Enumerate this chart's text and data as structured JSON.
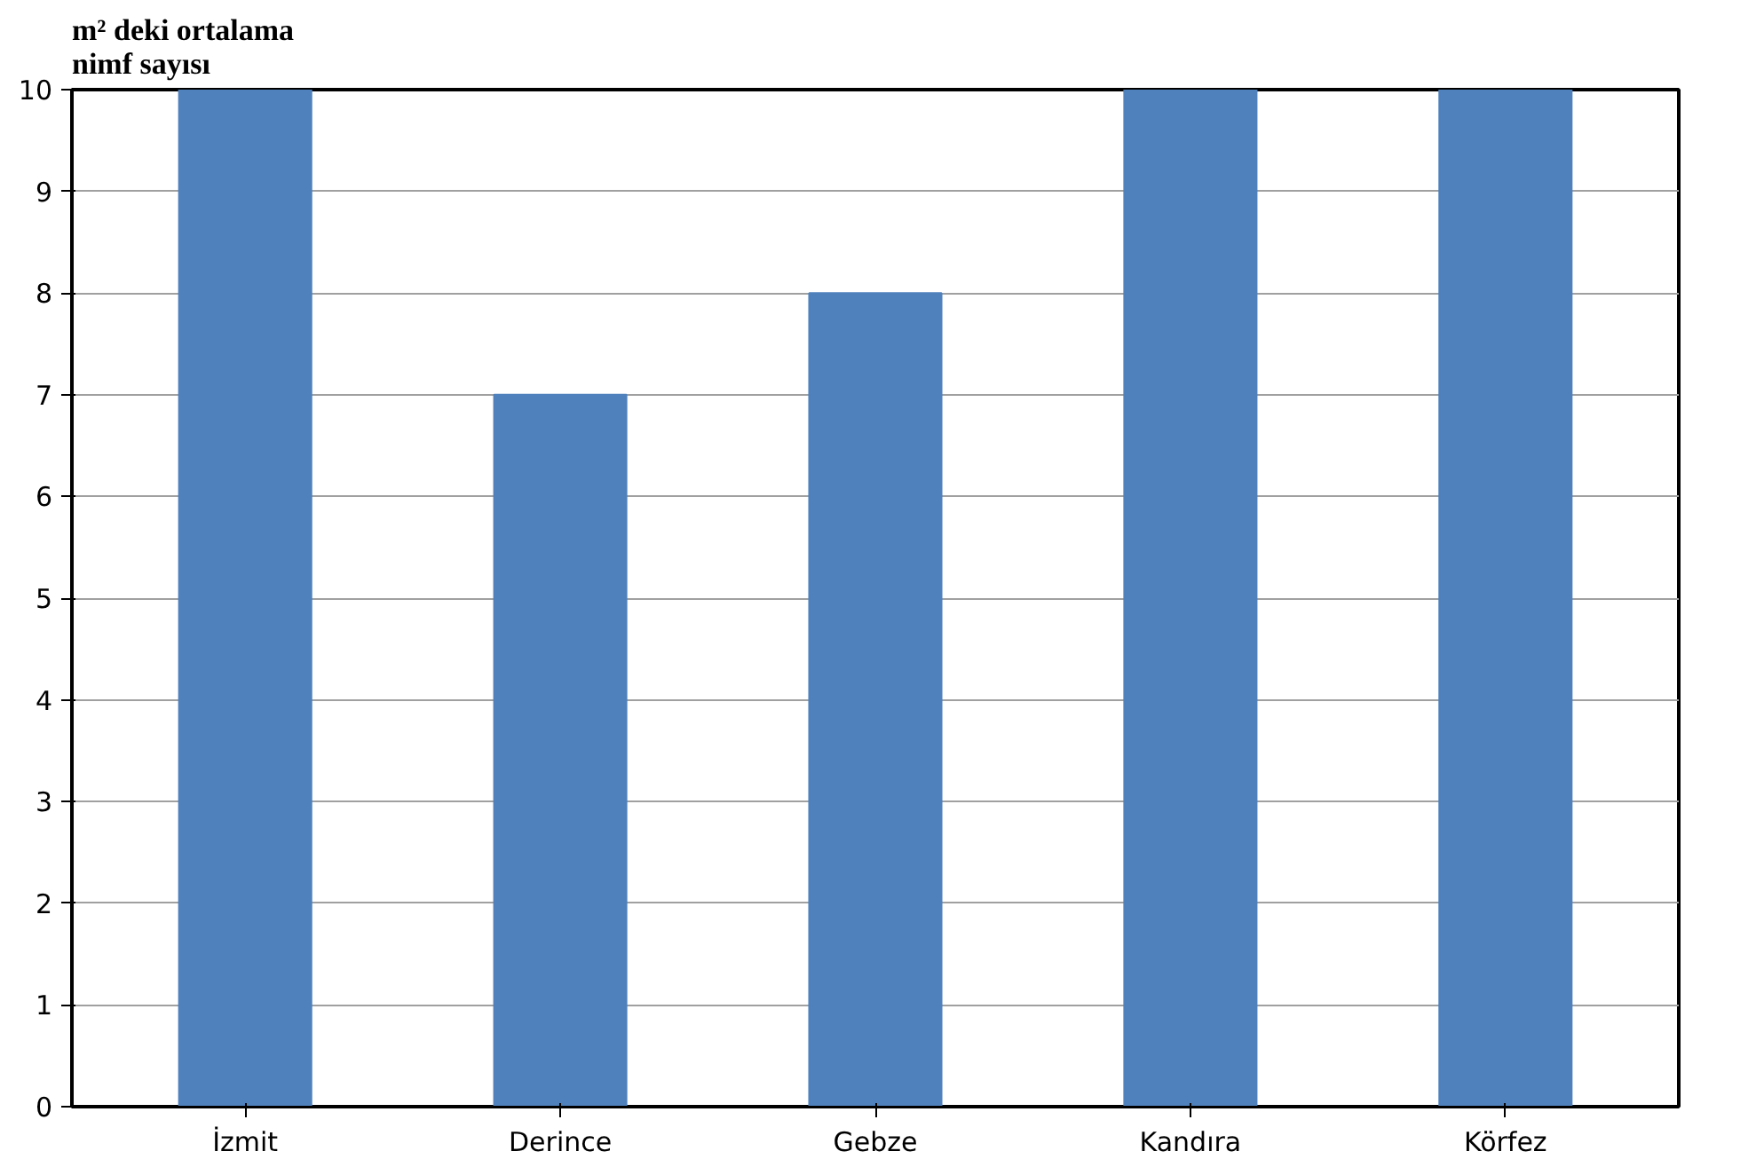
{
  "chart_data": {
    "type": "bar",
    "title": "m² deki ortalama\nnimf sayısı",
    "categories": [
      "İzmit",
      "Derince",
      "Gebze",
      "Kandıra",
      "Körfez"
    ],
    "values": [
      10,
      7,
      8,
      10,
      10
    ],
    "color": "#4f81bd",
    "ylim": [
      0,
      10
    ],
    "yticks": [
      0,
      1,
      2,
      3,
      4,
      5,
      6,
      7,
      8,
      9,
      10
    ],
    "grid": "y"
  }
}
